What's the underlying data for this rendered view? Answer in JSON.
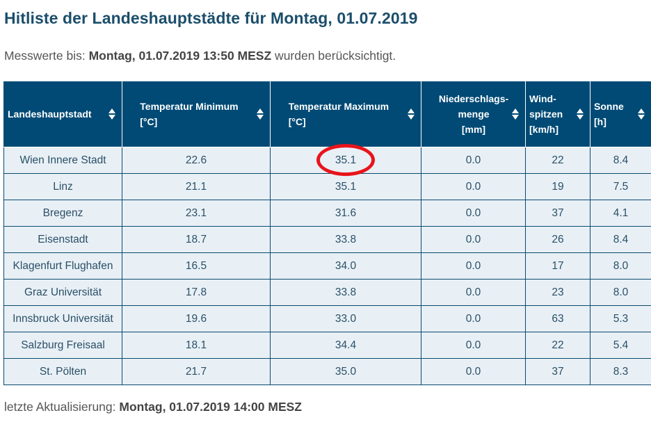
{
  "title": "Hitliste der Landeshauptstädte für Montag, 01.07.2019",
  "subline": {
    "prefix": "Messwerte bis: ",
    "date": "Montag, 01.07.2019 13:50 MESZ",
    "suffix": " wurden berücksichtigt."
  },
  "footer": {
    "prefix": "letzte Aktualisierung: ",
    "date": "Montag, 01.07.2019 14:00 MESZ"
  },
  "table": {
    "headers": [
      {
        "l1": "Landeshauptstadt",
        "l2": ""
      },
      {
        "l1": "Temperatur Minimum",
        "l2": "[°C]"
      },
      {
        "l1": "Temperatur Maximum",
        "l2": "[°C]"
      },
      {
        "l1": "Niederschlags-",
        "l1b": "menge",
        "l2": "[mm]"
      },
      {
        "l1": "Wind-",
        "l1b": "spitzen",
        "l2": "[km/h]"
      },
      {
        "l1": "Sonne",
        "l2": "[h]"
      }
    ],
    "rows": [
      [
        "Wien Innere Stadt",
        "22.6",
        "35.1",
        "0.0",
        "22",
        "8.4"
      ],
      [
        "Linz",
        "21.1",
        "35.1",
        "0.0",
        "19",
        "7.5"
      ],
      [
        "Bregenz",
        "23.1",
        "31.6",
        "0.0",
        "37",
        "4.1"
      ],
      [
        "Eisenstadt",
        "18.7",
        "33.8",
        "0.0",
        "26",
        "8.4"
      ],
      [
        "Klagenfurt Flughafen",
        "16.5",
        "34.0",
        "0.0",
        "17",
        "8.0"
      ],
      [
        "Graz Universität",
        "17.8",
        "33.8",
        "0.0",
        "23",
        "8.0"
      ],
      [
        "Innsbruck Universität",
        "19.6",
        "33.0",
        "0.0",
        "63",
        "5.3"
      ],
      [
        "Salzburg Freisaal",
        "18.1",
        "34.4",
        "0.0",
        "22",
        "5.4"
      ],
      [
        "St. Pölten",
        "21.7",
        "35.0",
        "0.0",
        "37",
        "8.3"
      ]
    ]
  },
  "annotation": {
    "color": "#e8141b",
    "target": "Wien Innere Stadt Temperatur Maximum"
  }
}
